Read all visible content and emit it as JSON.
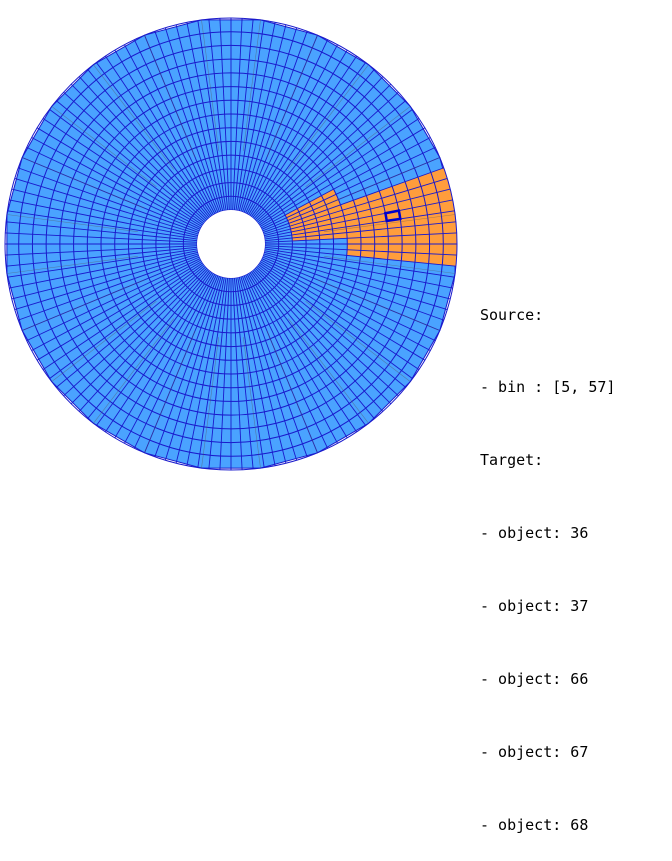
{
  "diagram": {
    "rings": 14,
    "sectors": 128,
    "highlight_sector_start": 25,
    "highlight_sector_span": 9,
    "highlight_rings_outer": 8,
    "highlight_rings_inner": 4,
    "selected_bin_sector": 28,
    "selected_bin_ring": 9,
    "colors": {
      "fill": "#4aa3ff",
      "grid_line": "#1a1acc",
      "highlight": "#ff9d3c",
      "selected_outline": "#0000cc",
      "facet_line": "#555555"
    }
  },
  "info": {
    "source_header": "Source:",
    "source_bin": "- bin : [5, 57]",
    "target_header": "Target:",
    "targets": [
      "- object: 36",
      "- object: 37",
      "- object: 66",
      "- object: 67",
      "- object: 68"
    ]
  }
}
